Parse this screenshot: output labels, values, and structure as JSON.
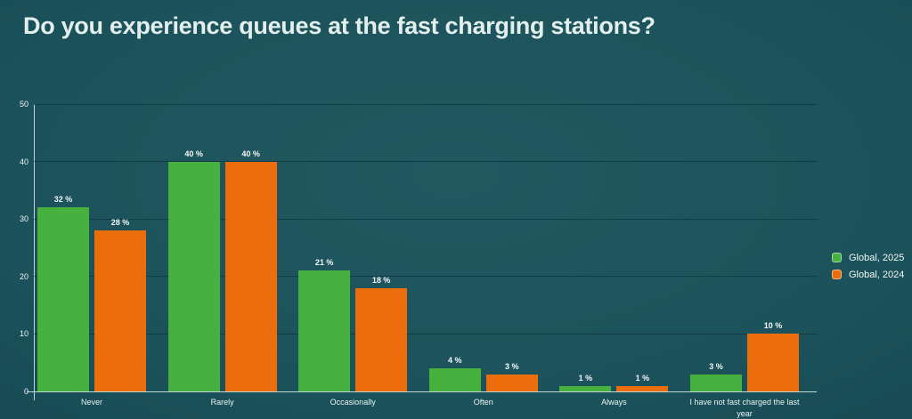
{
  "title": "Do you experience queues at the fast charging stations?",
  "chart_data": {
    "type": "bar",
    "title": "Do you experience queues at the fast charging stations?",
    "categories": [
      "Never",
      "Rarely",
      "Occasionally",
      "Often",
      "Always",
      "I have not fast charged the last year"
    ],
    "series": [
      {
        "name": "Global, 2025",
        "color": "#46b13e",
        "values": [
          32,
          40,
          21,
          4,
          1,
          3
        ],
        "labels": [
          "32 %",
          "40 %",
          "21 %",
          "4 %",
          "1 %",
          "3 %"
        ]
      },
      {
        "name": "Global, 2024",
        "color": "#ec6d0c",
        "values": [
          28,
          40,
          18,
          3,
          1,
          10
        ],
        "labels": [
          "28 %",
          "40 %",
          "18 %",
          "3 %",
          "1 %",
          "10 %"
        ]
      }
    ],
    "ylabel": "",
    "xlabel": "",
    "ylim": [
      0,
      50
    ],
    "yticks": [
      0,
      10,
      20,
      30,
      40,
      50
    ],
    "grid": "horizontal",
    "legend_position": "right"
  },
  "colors": {
    "background_center": "#215860",
    "background_edge": "#0a3f48",
    "series_green": "#46b13e",
    "series_orange": "#ec6d0c",
    "title_text": "#e3efed",
    "label_text": "#f2f7f6",
    "axis_line": "#deeded",
    "gridline": "#123f48"
  }
}
